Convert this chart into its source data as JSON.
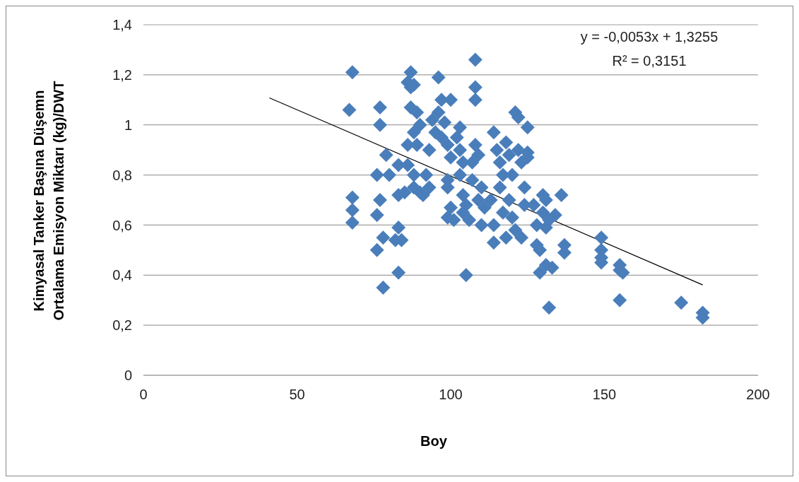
{
  "chart_data": {
    "type": "scatter",
    "xlabel": "Boy",
    "ylabel": "Kimyasal Tanker Başına Düşemn Ortalama Emisyon Miktarı (kg)/DWT",
    "xlim": [
      0,
      200
    ],
    "xticks": [
      0,
      50,
      100,
      150,
      200
    ],
    "ylim": [
      0,
      1.4
    ],
    "yticks": [
      0,
      {
        "value": 0.2,
        "label": "0,2"
      },
      {
        "value": 0.4,
        "label": "0,4"
      },
      {
        "value": 0.6,
        "label": "0,6"
      },
      {
        "value": 0.8,
        "label": "0,8"
      },
      1,
      {
        "value": 1.2,
        "label": "1,2"
      },
      {
        "value": 1.4,
        "label": "1,4"
      }
    ],
    "grid": "y",
    "marker": "diamond",
    "annotations": [
      "y = -0,0053x + 1,3255",
      "R² = 0,3151"
    ],
    "series": [
      {
        "color": "#4a7ebb",
        "x": [
          68,
          67,
          68,
          68,
          68,
          77,
          77,
          76,
          77,
          76,
          76,
          78,
          78,
          79,
          80,
          83,
          83,
          83,
          82,
          84,
          83,
          85,
          86,
          87,
          86,
          87,
          88,
          87,
          89,
          88,
          90,
          89,
          86,
          88,
          88,
          90,
          91,
          93,
          92,
          93,
          94,
          95,
          96,
          97,
          96,
          98,
          97,
          99,
          100,
          99,
          99,
          100,
          99,
          101,
          100,
          103,
          102,
          103,
          104,
          103,
          104,
          105,
          104,
          106,
          105,
          107,
          107,
          108,
          108,
          108,
          108,
          109,
          110,
          109,
          110,
          111,
          113,
          114,
          114,
          114,
          115,
          116,
          117,
          116,
          117,
          118,
          118,
          119,
          120,
          119,
          120,
          121,
          121,
          122,
          122,
          123,
          124,
          124,
          123,
          125,
          125,
          125,
          127,
          128,
          128,
          129,
          129,
          130,
          130,
          131,
          131,
          132,
          131,
          133,
          132,
          134,
          136,
          137,
          137,
          149,
          149,
          149,
          149,
          155,
          156,
          155,
          155,
          175,
          182,
          182
        ],
        "values": [
          1.21,
          1.06,
          0.71,
          0.66,
          0.61,
          1.07,
          1.0,
          0.8,
          0.7,
          0.64,
          0.5,
          0.55,
          0.35,
          0.88,
          0.8,
          0.84,
          0.72,
          0.59,
          0.54,
          0.54,
          0.41,
          0.73,
          0.84,
          1.21,
          1.17,
          1.15,
          1.16,
          1.07,
          1.05,
          0.97,
          1.0,
          0.92,
          0.92,
          0.8,
          0.75,
          0.73,
          0.72,
          0.75,
          0.8,
          0.9,
          1.02,
          0.97,
          1.19,
          1.1,
          1.05,
          1.01,
          0.95,
          0.92,
          0.87,
          0.78,
          0.75,
          0.67,
          0.63,
          0.62,
          1.1,
          0.99,
          0.95,
          0.9,
          0.85,
          0.8,
          0.72,
          0.68,
          0.65,
          0.62,
          0.4,
          0.78,
          0.85,
          0.92,
          1.26,
          1.15,
          1.1,
          0.88,
          0.75,
          0.7,
          0.6,
          0.67,
          0.7,
          0.6,
          0.53,
          0.97,
          0.9,
          0.85,
          0.8,
          0.75,
          0.65,
          0.55,
          0.93,
          0.88,
          0.8,
          0.7,
          0.63,
          0.58,
          1.05,
          1.03,
          0.9,
          0.85,
          0.75,
          0.68,
          0.55,
          0.99,
          0.89,
          0.87,
          0.68,
          0.6,
          0.52,
          0.5,
          0.41,
          0.72,
          0.65,
          0.59,
          0.7,
          0.62,
          0.44,
          0.43,
          0.27,
          0.64,
          0.72,
          0.52,
          0.49,
          0.55,
          0.5,
          0.47,
          0.45,
          0.44,
          0.41,
          0.42,
          0.3,
          0.29,
          0.25,
          0.23
        ]
      },
      {
        "type": "line",
        "color": "#000000",
        "marker": "none",
        "x": [
          41,
          182
        ],
        "values": [
          1.108,
          0.361
        ]
      }
    ]
  }
}
